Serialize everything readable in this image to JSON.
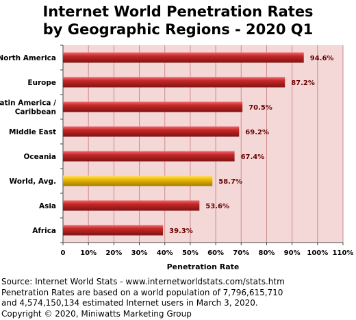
{
  "title_line1": "Internet World Penetration Rates",
  "title_line2": "by Geographic Regions -  2020 Q1",
  "chart_data": {
    "type": "bar",
    "orientation": "horizontal",
    "title": "Internet World Penetration Rates by Geographic Regions -  2020 Q1",
    "xlabel": "Penetration Rate",
    "ylabel": "",
    "categories": [
      "North America",
      "Europe",
      "Latin America / Caribbean",
      "Middle East",
      "Oceania",
      "World, Avg.",
      "Asia",
      "Africa"
    ],
    "category_lines": [
      [
        "North America"
      ],
      [
        "Europe"
      ],
      [
        "Latin America /",
        "Caribbean"
      ],
      [
        "Middle East"
      ],
      [
        "Oceania"
      ],
      [
        "World, Avg."
      ],
      [
        "Asia"
      ],
      [
        "Africa"
      ]
    ],
    "values": [
      94.6,
      87.2,
      70.5,
      69.2,
      67.4,
      58.7,
      53.6,
      39.3
    ],
    "value_labels": [
      "94.6%",
      "87.2%",
      "70.5%",
      "69.2%",
      "67.4%",
      "58.7%",
      "53.6%",
      "39.3%"
    ],
    "highlight_category": "World, Avg.",
    "xlim": [
      0,
      110
    ],
    "xticks": [
      0,
      10,
      20,
      30,
      40,
      50,
      60,
      70,
      80,
      90,
      100,
      110
    ],
    "xtick_labels": [
      "0",
      "10%",
      "20%",
      "30%",
      "40%",
      "50%",
      "60%",
      "70%",
      "80%",
      "90%",
      "100%",
      "110%"
    ],
    "grid": true,
    "legend": "none",
    "colors": {
      "bar": "#c62828",
      "highlight_bar": "#e8b800",
      "plot_background": "#f4d7d7",
      "gridline": "#cf8a8a",
      "value_label": "#6b0000"
    }
  },
  "footer": [
    "Source: Internet World Stats - www.internetworldstats.com/stats.htm",
    "Penetration Rates are based on a world population of 7,796,615,710",
    "and 4,574,150,134 estimated Internet users in March 3, 2020.",
    "Copyright © 2020, Miniwatts Marketing Group"
  ]
}
